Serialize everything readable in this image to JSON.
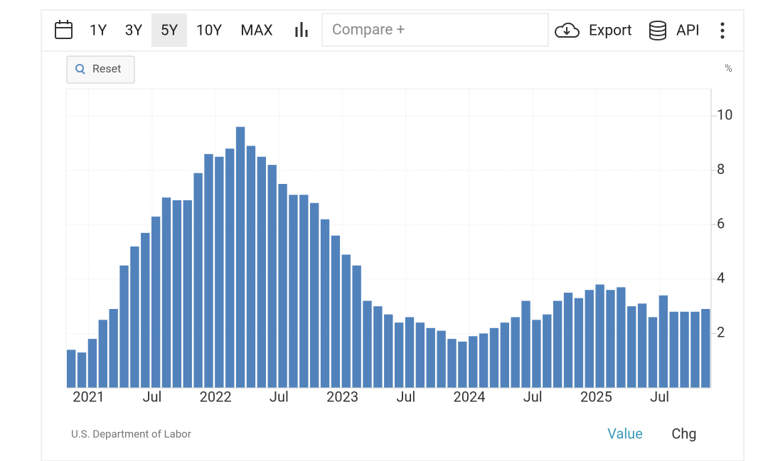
{
  "toolbar": {
    "ranges": [
      "1Y",
      "3Y",
      "5Y",
      "10Y",
      "MAX"
    ],
    "selected_range": "5Y",
    "compare": "Compare +",
    "export": "Export",
    "api": "API"
  },
  "reset": "Reset",
  "source": "U.S. Department of Labor",
  "tabs": [
    "Value",
    "Chg"
  ],
  "chart_data": {
    "type": "bar",
    "y_label": "%",
    "color": "#5182bc",
    "grid": true,
    "categories": [
      null,
      null,
      "2021",
      null,
      null,
      null,
      null,
      null,
      "Jul",
      null,
      null,
      null,
      null,
      null,
      "2022",
      null,
      null,
      null,
      null,
      null,
      "Jul",
      null,
      null,
      null,
      null,
      null,
      "2023",
      null,
      null,
      null,
      null,
      null,
      "Jul",
      null,
      null,
      null,
      null,
      null,
      "2024",
      null,
      null,
      null,
      null,
      null,
      "Jul",
      null,
      null,
      null,
      null,
      null,
      "2025",
      null,
      null,
      null,
      null,
      null,
      "Jul",
      null,
      null,
      null,
      null
    ],
    "values": [
      1.4,
      1.3,
      1.8,
      2.5,
      2.9,
      4.5,
      5.2,
      5.7,
      6.3,
      7.0,
      6.9,
      6.9,
      7.9,
      8.6,
      8.5,
      8.8,
      9.6,
      8.9,
      8.5,
      8.2,
      7.5,
      7.1,
      7.1,
      6.8,
      6.2,
      5.6,
      4.9,
      4.5,
      3.2,
      3.0,
      2.7,
      2.4,
      2.6,
      2.4,
      2.2,
      2.1,
      1.8,
      1.7,
      1.9,
      2.0,
      2.2,
      2.4,
      2.6,
      3.2,
      2.5,
      2.7,
      3.2,
      3.5,
      3.3,
      3.6,
      3.8,
      3.6,
      3.7,
      3.0,
      3.1,
      2.6,
      3.4,
      2.8,
      2.8,
      2.8,
      2.9
    ],
    "ylim": [
      0,
      11
    ],
    "yticks": [
      2,
      4,
      6,
      8,
      10
    ]
  }
}
